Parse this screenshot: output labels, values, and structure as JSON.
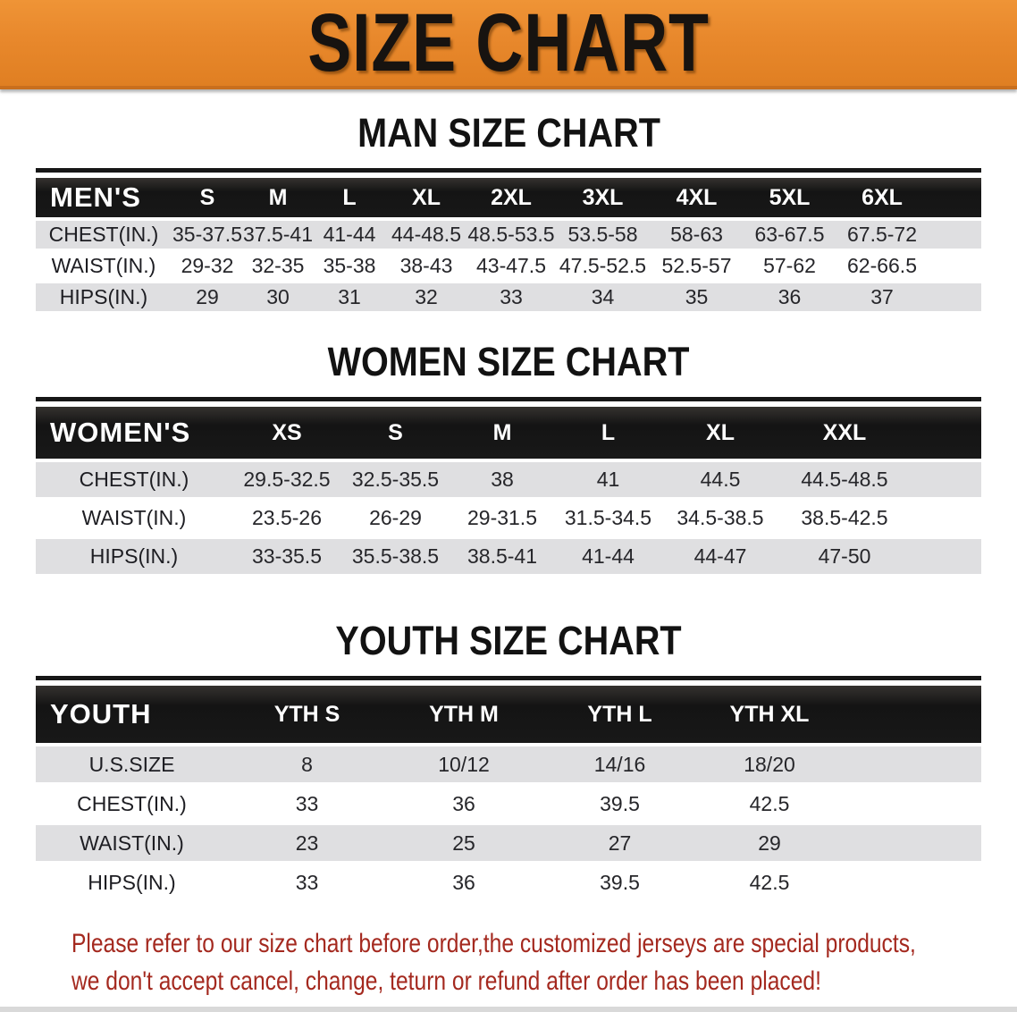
{
  "banner": {
    "title": "SIZE CHART"
  },
  "sections": [
    {
      "heading": "MAN SIZE CHART",
      "table": {
        "label": "MEN'S",
        "columns": [
          "S",
          "M",
          "L",
          "XL",
          "2XL",
          "3XL",
          "4XL",
          "5XL",
          "6XL"
        ],
        "rows": [
          {
            "label": "CHEST(IN.)",
            "values": [
              "35-37.5",
              "37.5-41",
              "41-44",
              "44-48.5",
              "48.5-53.5",
              "53.5-58",
              "58-63",
              "63-67.5",
              "67.5-72"
            ]
          },
          {
            "label": "WAIST(IN.)",
            "values": [
              "29-32",
              "32-35",
              "35-38",
              "38-43",
              "43-47.5",
              "47.5-52.5",
              "52.5-57",
              "57-62",
              "62-66.5"
            ]
          },
          {
            "label": "HIPS(IN.)",
            "values": [
              "29",
              "30",
              "31",
              "32",
              "33",
              "34",
              "35",
              "36",
              "37"
            ]
          }
        ]
      }
    },
    {
      "heading": "WOMEN SIZE CHART",
      "table": {
        "label": "WOMEN'S",
        "columns": [
          "XS",
          "S",
          "M",
          "L",
          "XL",
          "XXL"
        ],
        "rows": [
          {
            "label": "CHEST(IN.)",
            "values": [
              "29.5-32.5",
              "32.5-35.5",
              "38",
              "41",
              "44.5",
              "44.5-48.5"
            ]
          },
          {
            "label": "WAIST(IN.)",
            "values": [
              "23.5-26",
              "26-29",
              "29-31.5",
              "31.5-34.5",
              "34.5-38.5",
              "38.5-42.5"
            ]
          },
          {
            "label": "HIPS(IN.)",
            "values": [
              "33-35.5",
              "35.5-38.5",
              "38.5-41",
              "41-44",
              "44-47",
              "47-50"
            ]
          }
        ]
      }
    },
    {
      "heading": "YOUTH SIZE CHART",
      "table": {
        "label": "YOUTH",
        "columns": [
          "YTH S",
          "YTH M",
          "YTH L",
          "YTH XL"
        ],
        "rows": [
          {
            "label": "U.S.SIZE",
            "values": [
              "8",
              "10/12",
              "14/16",
              "18/20"
            ]
          },
          {
            "label": "CHEST(IN.)",
            "values": [
              "33",
              "36",
              "39.5",
              "42.5"
            ]
          },
          {
            "label": "WAIST(IN.)",
            "values": [
              "23",
              "25",
              "27",
              "29"
            ]
          },
          {
            "label": "HIPS(IN.)",
            "values": [
              "33",
              "36",
              "39.5",
              "42.5"
            ]
          }
        ]
      }
    }
  ],
  "disclaimer": {
    "line1": "Please refer to our size chart before order,the customized jerseys are special products,",
    "line2": "we don't accept cancel, change, teturn or refund after order has been placed!"
  },
  "colors": {
    "banner_orange": "#E8882C",
    "header_black": "#161616",
    "row_gray": "#DFDFE1",
    "disclaimer_red": "#A4291F"
  }
}
